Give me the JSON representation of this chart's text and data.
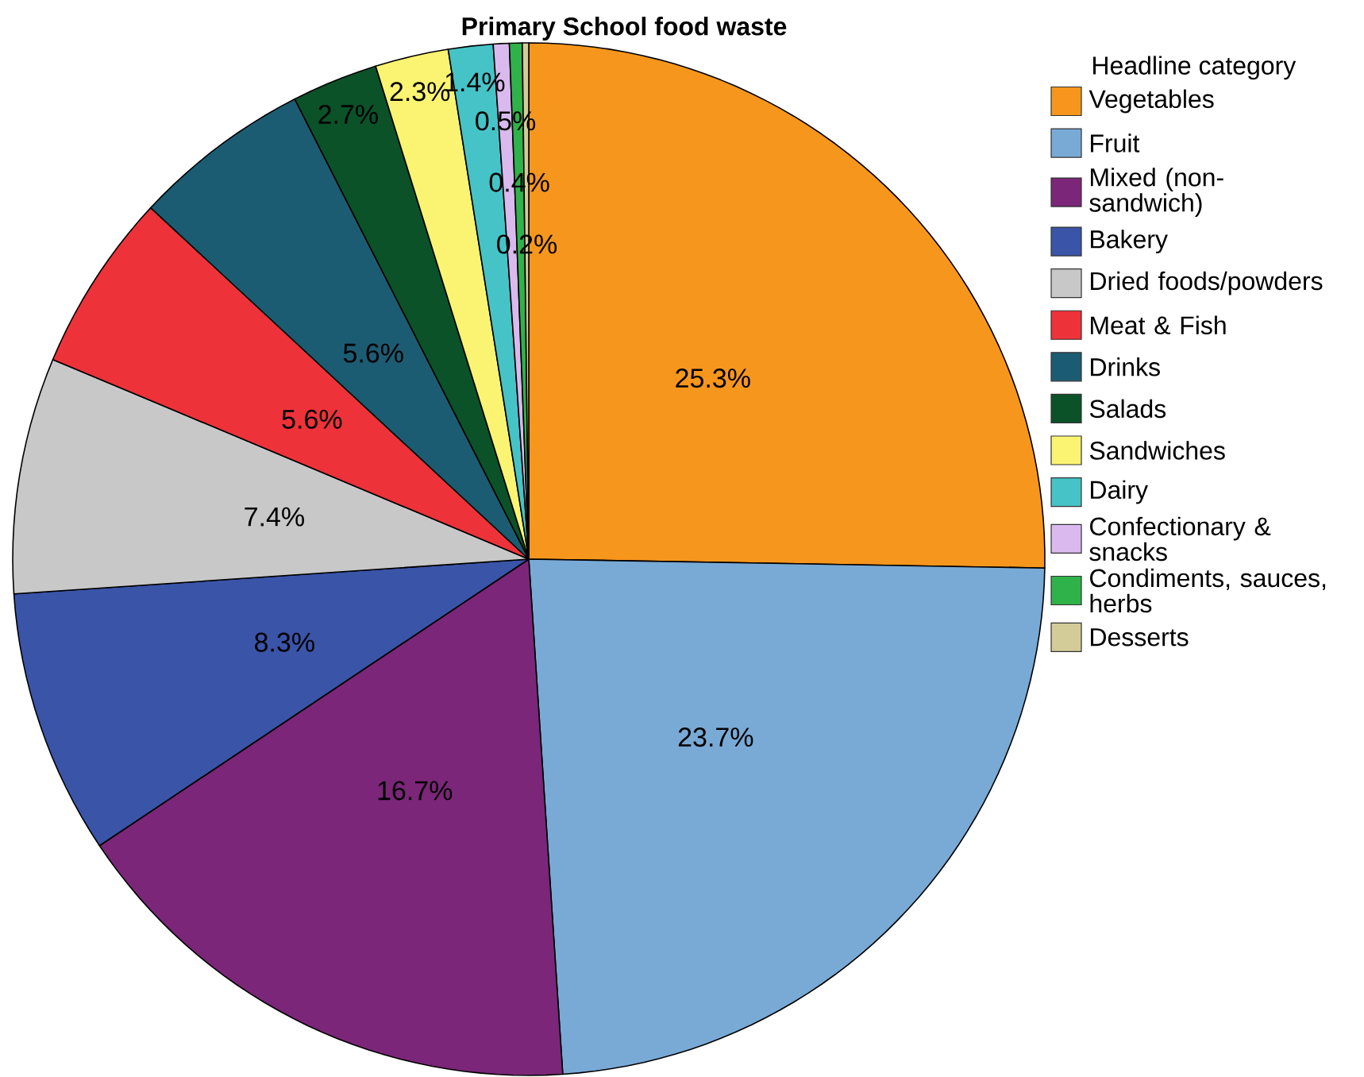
{
  "chart_data": {
    "type": "pie",
    "title": "Primary School food waste",
    "legend_title": "Headline category",
    "legend": "right",
    "categories": [
      "Vegetables",
      "Fruit",
      "Mixed (non-sandwich)",
      "Bakery",
      "Dried foods/powders",
      "Meat & Fish",
      "Drinks",
      "Salads",
      "Sandwiches",
      "Dairy",
      "Confectionary & snacks",
      "Condiments, sauces, herbs",
      "Desserts"
    ],
    "values": [
      25.3,
      23.7,
      16.7,
      8.3,
      7.4,
      5.6,
      5.6,
      2.7,
      2.3,
      1.4,
      0.5,
      0.4,
      0.2
    ],
    "value_labels": [
      "25.3%",
      "23.7%",
      "16.7%",
      "8.3%",
      "7.4%",
      "5.6%",
      "5.6%",
      "2.7%",
      "2.3%",
      "1.4%",
      "0.5%",
      "0.4%",
      "0.2%"
    ],
    "colors": [
      "#f7961d",
      "#79aad6",
      "#7b2678",
      "#3a54a8",
      "#c8c8c8",
      "#ee3239",
      "#1c5c73",
      "#0b5229",
      "#fbf472",
      "#46c3c6",
      "#dab9ee",
      "#2fb24a",
      "#d4cc98"
    ]
  }
}
